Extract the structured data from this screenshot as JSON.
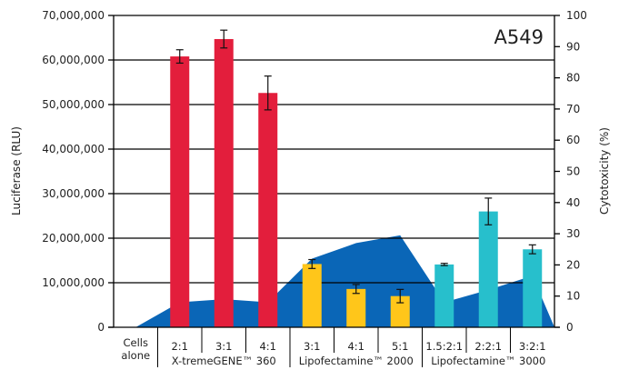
{
  "chart_data": {
    "type": "bar",
    "title": "",
    "panel_label": "A549",
    "ylabel": "Luciferase (RLU)",
    "y2label": "Cytotoxicity (%)",
    "ylim": [
      0,
      70000000
    ],
    "y2lim": [
      0,
      100
    ],
    "y_ticks": [
      0,
      10000000,
      20000000,
      30000000,
      40000000,
      50000000,
      60000000,
      70000000
    ],
    "y_tick_labels": [
      "0",
      "10,000,000",
      "20,000,000",
      "30,000,000",
      "40,000,000",
      "50,000,000",
      "60,000,000",
      "70,000,000"
    ],
    "y2_ticks": [
      0,
      10,
      20,
      30,
      40,
      50,
      60,
      70,
      80,
      90,
      100
    ],
    "y2_tick_labels": [
      "0",
      "10",
      "20",
      "30",
      "40",
      "50",
      "60",
      "70",
      "80",
      "90",
      "100"
    ],
    "grid": true,
    "categories": [
      "Cells alone",
      "2:1",
      "3:1",
      "4:1",
      "3:1",
      "4:1",
      "5:1",
      "1.5:2:1",
      "2:2:1",
      "3:2:1"
    ],
    "category_lines": [
      [
        "Cells",
        "alone"
      ],
      [
        "2:1"
      ],
      [
        "3:1"
      ],
      [
        "4:1"
      ],
      [
        "3:1"
      ],
      [
        "4:1"
      ],
      [
        "5:1"
      ],
      [
        "1.5:2:1"
      ],
      [
        "2:2:1"
      ],
      [
        "3:2:1"
      ]
    ],
    "groups": [
      {
        "label": "",
        "range": [
          0,
          0
        ]
      },
      {
        "label": "X-tremeGENE™ 360",
        "range": [
          1,
          3
        ]
      },
      {
        "label": "Lipofectamine™ 2000",
        "range": [
          4,
          6
        ]
      },
      {
        "label": "Lipofectamine™ 3000",
        "range": [
          7,
          9
        ]
      }
    ],
    "series": [
      {
        "axis": "left",
        "kind": "bar",
        "values": [
          0,
          60800000,
          64700000,
          52600000,
          14200000,
          8600000,
          7000000,
          14100000,
          26000000,
          17500000
        ],
        "errors": [
          0,
          1500000,
          2000000,
          3800000,
          1000000,
          1000000,
          1500000,
          250000,
          3000000,
          1000000
        ],
        "colors": [
          "#E31E3C",
          "#E31E3C",
          "#E31E3C",
          "#E31E3C",
          "#FFC61A",
          "#FFC61A",
          "#FFC61A",
          "#27BFCC",
          "#27BFCC",
          "#27BFCC"
        ]
      },
      {
        "axis": "right",
        "kind": "area",
        "color": "#0A66B7",
        "values": [
          0,
          8,
          9,
          8,
          22,
          27,
          29.5,
          8,
          12,
          16.5
        ]
      }
    ]
  }
}
